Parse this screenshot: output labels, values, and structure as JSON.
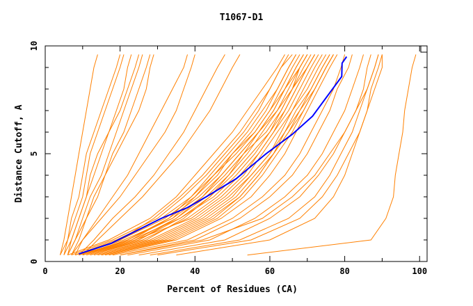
{
  "chart_data": {
    "type": "line",
    "title": "T1067-D1",
    "xlabel": "Percent of Residues (CA)",
    "ylabel": "Distance Cutoff, A",
    "xlim": [
      0,
      102
    ],
    "ylim": [
      0,
      10
    ],
    "xticks": [
      0,
      20,
      40,
      60,
      80,
      100
    ],
    "yticks": [
      0,
      5,
      10
    ],
    "grid": false,
    "colors": {
      "models": "#ff8000",
      "highlight": "#0000ff"
    },
    "model_y_levels": [
      0.3,
      1,
      2,
      3,
      4,
      5,
      6,
      7,
      8,
      9,
      9.6
    ],
    "model_series_x": [
      [
        4,
        5,
        6,
        7,
        8,
        9,
        10,
        11,
        12,
        13,
        14
      ],
      [
        5,
        6,
        7,
        9,
        10,
        11,
        13,
        15,
        17,
        19,
        20
      ],
      [
        4,
        6,
        8,
        10,
        11,
        12,
        14,
        16,
        18,
        20,
        21
      ],
      [
        6,
        7,
        9,
        11,
        13,
        15,
        17,
        19,
        21,
        22,
        23
      ],
      [
        5,
        7,
        9,
        11,
        12,
        14,
        17,
        20,
        22,
        24,
        25
      ],
      [
        6,
        8,
        10,
        12,
        15,
        17,
        19,
        21,
        23,
        25,
        26
      ],
      [
        7,
        9,
        11,
        14,
        16,
        18,
        21,
        23,
        25,
        27,
        28
      ],
      [
        6,
        8,
        11,
        13,
        16,
        19,
        22,
        25,
        27,
        28,
        29
      ],
      [
        8,
        10,
        14,
        18,
        22,
        25,
        28,
        31,
        34,
        37,
        38
      ],
      [
        7,
        10,
        15,
        20,
        24,
        28,
        32,
        35,
        37,
        39,
        40
      ],
      [
        9,
        13,
        18,
        24,
        29,
        33,
        37,
        40,
        43,
        46,
        48
      ],
      [
        10,
        14,
        20,
        26,
        31,
        36,
        40,
        44,
        47,
        50,
        52
      ],
      [
        6,
        17,
        28,
        35,
        40,
        45,
        50,
        54,
        58,
        62,
        64
      ],
      [
        7,
        18,
        30,
        37,
        43,
        48,
        53,
        57,
        60,
        63,
        65
      ],
      [
        8,
        20,
        32,
        40,
        46,
        50,
        55,
        59,
        62,
        65,
        67
      ],
      [
        9,
        22,
        33,
        41,
        47,
        52,
        57,
        61,
        64,
        67,
        69
      ],
      [
        10,
        24,
        35,
        43,
        49,
        54,
        58,
        62,
        65,
        68,
        70
      ],
      [
        8,
        21,
        34,
        42,
        48,
        53,
        59,
        63,
        66,
        68,
        70
      ],
      [
        11,
        25,
        36,
        44,
        50,
        55,
        60,
        64,
        67,
        70,
        72
      ],
      [
        12,
        26,
        38,
        46,
        52,
        57,
        61,
        65,
        68,
        71,
        73
      ],
      [
        9,
        23,
        36,
        45,
        51,
        56,
        60,
        63,
        66,
        69,
        71
      ],
      [
        13,
        28,
        40,
        48,
        54,
        58,
        62,
        66,
        70,
        73,
        75
      ],
      [
        10,
        22,
        34,
        40,
        45,
        50,
        56,
        60,
        64,
        67,
        69
      ],
      [
        12,
        27,
        37,
        44,
        49,
        53,
        57,
        61,
        64,
        68,
        70
      ],
      [
        14,
        30,
        42,
        50,
        55,
        60,
        64,
        67,
        71,
        74,
        76
      ],
      [
        11,
        24,
        39,
        47,
        53,
        57,
        61,
        64,
        67,
        70,
        72
      ],
      [
        15,
        32,
        44,
        52,
        57,
        61,
        65,
        68,
        71,
        74,
        76
      ],
      [
        9,
        20,
        29,
        36,
        42,
        47,
        52,
        56,
        60,
        63,
        66
      ],
      [
        13,
        29,
        41,
        49,
        55,
        60,
        63,
        66,
        69,
        72,
        74
      ],
      [
        16,
        34,
        46,
        53,
        58,
        62,
        66,
        69,
        72,
        75,
        77
      ],
      [
        8,
        19,
        31,
        39,
        45,
        51,
        56,
        60,
        63,
        66,
        68
      ],
      [
        14,
        31,
        43,
        51,
        56,
        61,
        65,
        69,
        72,
        75,
        77
      ],
      [
        12,
        25,
        35,
        42,
        47,
        52,
        57,
        62,
        66,
        70,
        72
      ],
      [
        17,
        35,
        47,
        55,
        60,
        64,
        67,
        70,
        73,
        76,
        78
      ],
      [
        10,
        23,
        33,
        39,
        44,
        49,
        54,
        58,
        62,
        65,
        67
      ],
      [
        15,
        33,
        45,
        52,
        57,
        61,
        64,
        68,
        72,
        75,
        77
      ],
      [
        18,
        38,
        50,
        58,
        64,
        68,
        71,
        74,
        77,
        79,
        80
      ],
      [
        20,
        40,
        52,
        60,
        66,
        70,
        73,
        76,
        78,
        81,
        82
      ],
      [
        22,
        44,
        56,
        64,
        70,
        74,
        77,
        80,
        82,
        84,
        85
      ],
      [
        25,
        48,
        60,
        68,
        73,
        77,
        80,
        83,
        85,
        86,
        87
      ],
      [
        28,
        52,
        65,
        72,
        76,
        79,
        82,
        84,
        86,
        88,
        89
      ],
      [
        30,
        55,
        68,
        74,
        78,
        81,
        84,
        86,
        87,
        89,
        90
      ],
      [
        20,
        42,
        58,
        66,
        72,
        76,
        80,
        83,
        86,
        88,
        89
      ],
      [
        35,
        60,
        72,
        77,
        80,
        82,
        84,
        86,
        88,
        90,
        90
      ],
      [
        54,
        87,
        91,
        93,
        93.5,
        94.5,
        95.5,
        96,
        97,
        98,
        99
      ]
    ],
    "highlight_series": {
      "x": [
        9,
        17.6,
        25,
        31,
        38,
        43,
        51,
        59,
        66,
        71.4,
        79.2,
        79.3,
        80.5
      ],
      "y": [
        0.35,
        0.84,
        1.48,
        2,
        2.5,
        3,
        3.84,
        5,
        5.9,
        6.74,
        8.58,
        9.2,
        9.5
      ]
    }
  }
}
